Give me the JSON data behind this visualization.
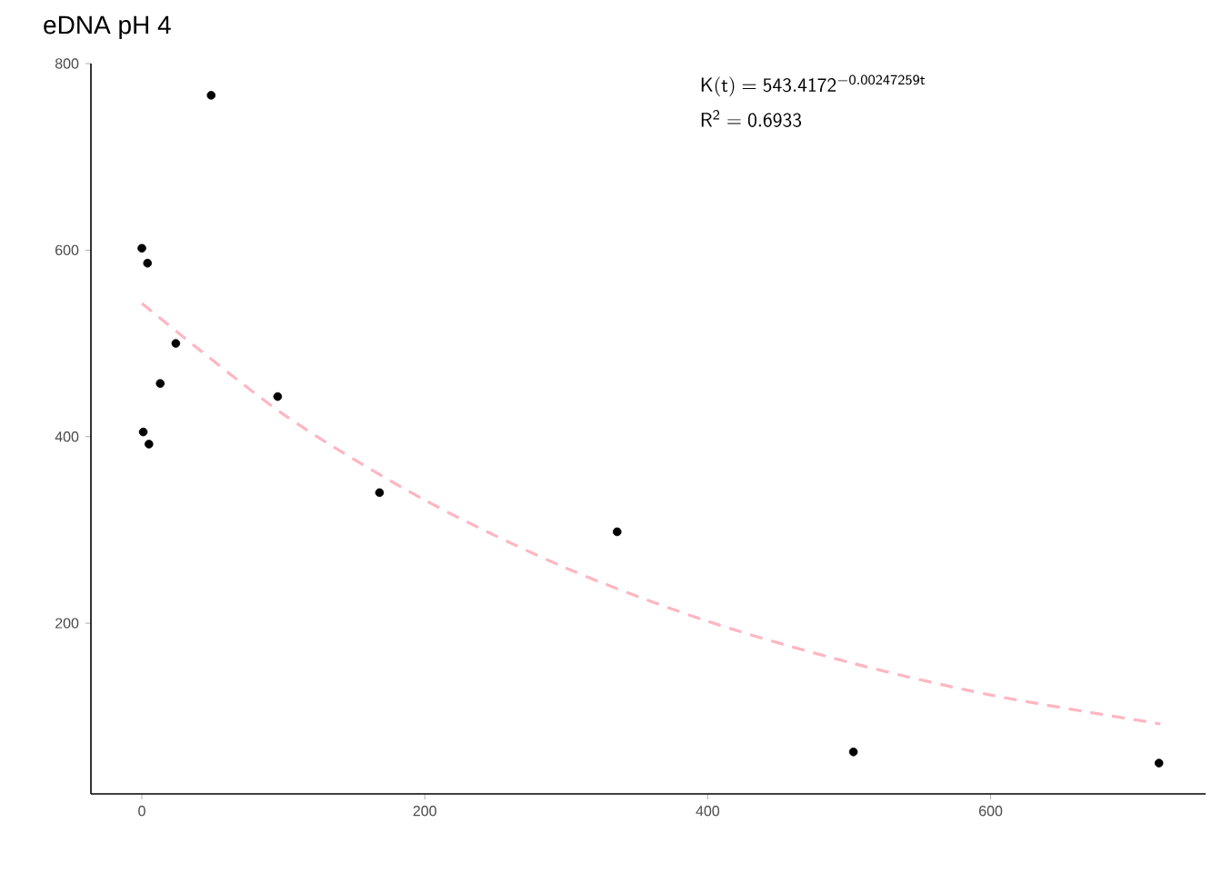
{
  "chart_data": {
    "type": "scatter",
    "title": "eDNA pH 4",
    "xlim": [
      -36,
      752
    ],
    "ylim": [
      17,
      800
    ],
    "xticks": [
      0,
      200,
      400,
      600
    ],
    "yticks": [
      200,
      400,
      600,
      800
    ],
    "grid": false,
    "annotations": [
      "\\mathsf{K(t) = 543.4172^{-0.00247259t}}",
      "\\mathsf{R^{2} = 0.6933}"
    ],
    "series": [
      {
        "color": "#000000",
        "marker": "circle",
        "x": [
          0,
          4,
          1,
          5,
          13,
          24,
          49,
          96,
          168,
          336,
          503,
          719
        ],
        "values": [
          602,
          586,
          405,
          392,
          457,
          500,
          766,
          443,
          340,
          298,
          62,
          50
        ]
      },
      {
        "type": "line",
        "color": "#ffb6c1",
        "line_style": "dashed",
        "marker": "none",
        "x": [
          0,
          100,
          200,
          300,
          400,
          500,
          600,
          720
        ],
        "values": [
          543,
          424,
          332,
          259,
          202,
          158,
          123,
          92
        ]
      }
    ]
  }
}
